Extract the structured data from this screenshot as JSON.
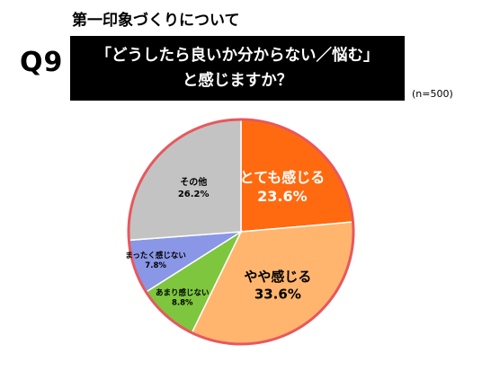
{
  "header": {
    "subtitle": "第一印象づくりについて",
    "question_number": "Q9",
    "question_line1": "「どうしたら良いか分からない／悩む」",
    "question_line2": "と感じますか？",
    "sample_size": "(n=500)"
  },
  "chart_data": {
    "type": "pie",
    "start_angle_deg": 0,
    "direction": "clockwise",
    "border_color": "#e8585d",
    "slices": [
      {
        "label": "とても感じる",
        "value": 23.6,
        "value_label": "23.6%",
        "color": "#ff6a10",
        "text_color": "#ffffff",
        "font_size": 16
      },
      {
        "label": "やや感じる",
        "value": 33.6,
        "value_label": "33.6%",
        "color": "#ffb56e",
        "text_color": "#000000",
        "font_size": 15
      },
      {
        "label": "あまり感じない",
        "value": 8.8,
        "value_label": "8.8%",
        "color": "#7ec63e",
        "text_color": "#000000",
        "font_size": 8.5
      },
      {
        "label": "まったく感じない",
        "value": 7.8,
        "value_label": "7.8%",
        "color": "#8a97e6",
        "text_color": "#000000",
        "font_size": 8.5
      },
      {
        "label": "その他",
        "value": 26.2,
        "value_label": "26.2%",
        "color": "#c3c3c3",
        "text_color": "#000000",
        "font_size": 10
      }
    ]
  }
}
